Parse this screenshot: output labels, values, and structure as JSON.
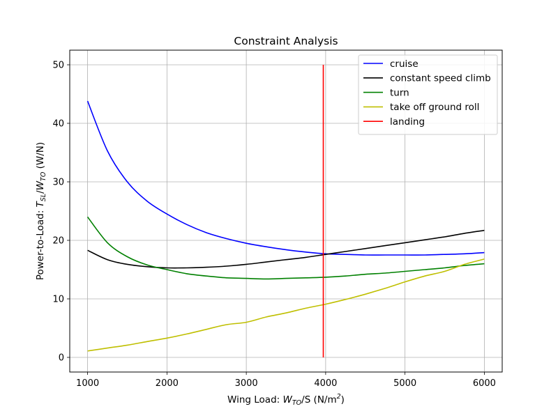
{
  "chart_data": {
    "type": "line",
    "title": "Constraint Analysis",
    "xlabel": {
      "prefix": "Wing Load: ",
      "var": "W",
      "sub": "TO",
      "suffix": "/S (N/m",
      "sup": "2",
      "end": ")"
    },
    "ylabel": {
      "prefix": "Power-to-Load: ",
      "var1": "T",
      "sub1": "SL",
      "mid": "/",
      "var2": "W",
      "sub2": "TO",
      "suffix": " (W/N)"
    },
    "xlim": [
      775,
      6225
    ],
    "ylim": [
      -2.5,
      52.5
    ],
    "xticks": [
      1000,
      2000,
      3000,
      4000,
      5000,
      6000
    ],
    "yticks": [
      0,
      10,
      20,
      30,
      40,
      50
    ],
    "grid": true,
    "legend_position": "top-right",
    "series": [
      {
        "name": "cruise",
        "color": "#0000ff",
        "x": [
          1000,
          1250,
          1500,
          1750,
          2000,
          2250,
          2500,
          2750,
          3000,
          3250,
          3500,
          3750,
          4000,
          4250,
          4500,
          4750,
          5000,
          5250,
          5500,
          5750,
          6000
        ],
        "y": [
          43.8,
          35.3,
          30.0,
          26.7,
          24.5,
          22.7,
          21.3,
          20.3,
          19.5,
          18.9,
          18.4,
          18.0,
          17.7,
          17.6,
          17.5,
          17.5,
          17.5,
          17.5,
          17.6,
          17.7,
          17.9
        ]
      },
      {
        "name": "constant speed climb",
        "color": "#000000",
        "x": [
          1000,
          1250,
          1500,
          1750,
          2000,
          2250,
          2500,
          2750,
          3000,
          3250,
          3500,
          3750,
          4000,
          4250,
          4500,
          4750,
          5000,
          5250,
          5500,
          5750,
          6000
        ],
        "y": [
          18.3,
          16.7,
          15.9,
          15.5,
          15.3,
          15.3,
          15.4,
          15.6,
          15.9,
          16.3,
          16.7,
          17.1,
          17.6,
          18.1,
          18.6,
          19.1,
          19.6,
          20.1,
          20.6,
          21.2,
          21.7
        ]
      },
      {
        "name": "turn",
        "color": "#008000",
        "x": [
          1000,
          1250,
          1500,
          1750,
          2000,
          2250,
          2500,
          2750,
          3000,
          3250,
          3500,
          3750,
          4000,
          4250,
          4500,
          4750,
          5000,
          5250,
          5500,
          5750,
          6000
        ],
        "y": [
          24.0,
          19.6,
          17.2,
          15.8,
          15.0,
          14.3,
          13.9,
          13.6,
          13.5,
          13.4,
          13.5,
          13.6,
          13.7,
          13.9,
          14.2,
          14.4,
          14.7,
          15.0,
          15.3,
          15.7,
          16.0
        ]
      },
      {
        "name": "take off ground roll",
        "color": "#bfbf00",
        "x": [
          1000,
          1250,
          1500,
          1750,
          2000,
          2250,
          2500,
          2750,
          3000,
          3250,
          3500,
          3750,
          4000,
          4250,
          4500,
          4750,
          5000,
          5250,
          5500,
          5750,
          6000
        ],
        "y": [
          1.1,
          1.6,
          2.1,
          2.7,
          3.3,
          4.0,
          4.8,
          5.6,
          6.0,
          6.9,
          7.6,
          8.4,
          9.1,
          9.9,
          10.8,
          11.8,
          12.9,
          13.9,
          14.7,
          15.9,
          16.8
        ]
      },
      {
        "name": "landing",
        "color": "#ff0000",
        "x": [
          3970,
          3970
        ],
        "y": [
          0,
          50
        ]
      }
    ]
  }
}
